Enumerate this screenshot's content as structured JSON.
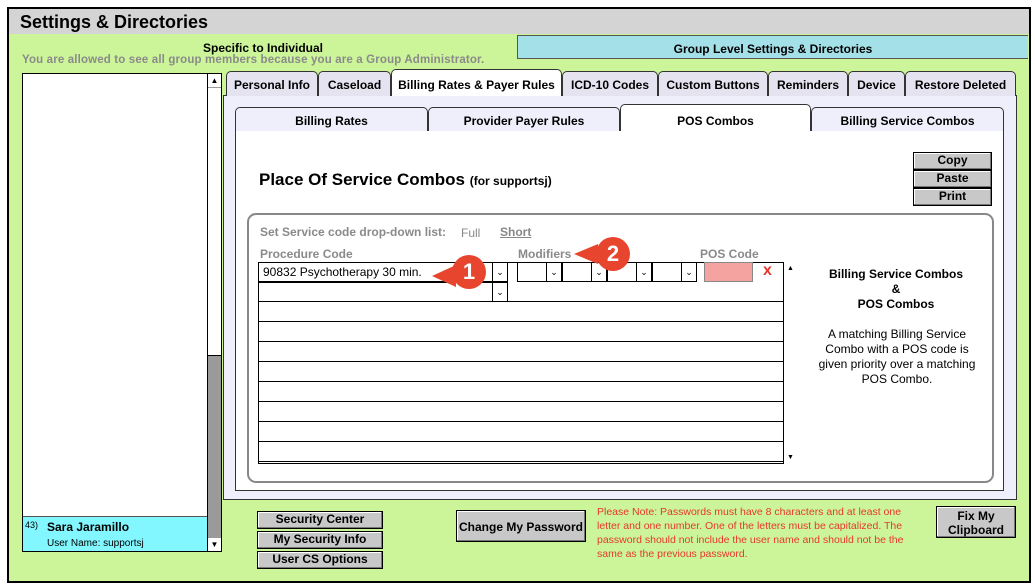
{
  "window": {
    "title": "Settings & Directories"
  },
  "top_tabs": {
    "individual": "Specific to Individual",
    "group": "Group Level Settings & Directories",
    "admin_note": "You are allowed to see all group members because you are a Group Administrator."
  },
  "user_list": {
    "selected": {
      "index": "43)",
      "name": "Sara Jaramillo",
      "username": "User Name: supportsj"
    }
  },
  "main_tabs": [
    "Personal Info",
    "Caseload",
    "Billing Rates & Payer Rules",
    "ICD-10 Codes",
    "Custom Buttons",
    "Reminders",
    "Device",
    "Restore Deleted"
  ],
  "sub_tabs": [
    "Billing Rates",
    "Provider Payer Rules",
    "POS Combos",
    "Billing Service Combos"
  ],
  "pos": {
    "title": "Place Of Service Combos",
    "for_user": "(for supportsj)",
    "buttons": {
      "copy": "Copy",
      "paste": "Paste",
      "print": "Print"
    },
    "dropdown_label": "Set Service code drop-down list:",
    "full": "Full",
    "short": "Short",
    "col_procedure": "Procedure Code",
    "col_modifiers": "Modifiers",
    "col_pos": "POS Code",
    "row1_procedure": "90832 Psychotherapy 30 min.",
    "delete": "x",
    "info_title1": "Billing Service Combos",
    "info_amp": "&",
    "info_title2": "POS Combos",
    "info_text": "A matching Billing Service Combo with a POS code is given priority over a matching POS Combo.",
    "pos_color": "#f4a3a0"
  },
  "callouts": [
    "1",
    "2"
  ],
  "bottom": {
    "security_center": "Security Center",
    "my_security": "My Security Info",
    "cs_options": "User CS Options",
    "change_password": "Change My Password",
    "password_note": "Please Note: Passwords must have 8 characters and at least one letter and one number. One of the letters must be capitalized. The password should not include the user name and should not be the same as the previous password.",
    "fix_clipboard": "Fix My Clipboard"
  }
}
